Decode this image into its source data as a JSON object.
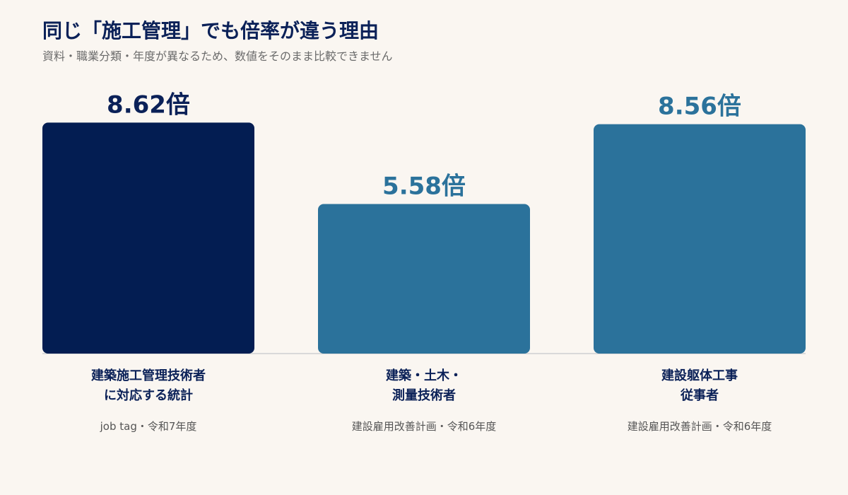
{
  "title": "同じ「施工管理」でも倍率が違う理由",
  "subtitle": "資料・職業分類・年度が異なるため、数値をそのまま比較できません",
  "chart_data": {
    "type": "bar",
    "value_suffix": "倍",
    "ylim": [
      0,
      9.5
    ],
    "grid": false,
    "categories": [
      {
        "label_lines": [
          "建築施工管理技術者",
          "に対応する統計"
        ],
        "source": "job tag・令和7年度",
        "value": 8.62,
        "value_label": "8.62倍",
        "color": "#031d52",
        "label_color": "#0b2158"
      },
      {
        "label_lines": [
          "建築・土木・",
          "測量技術者"
        ],
        "source": "建設雇用改善計画・令和6年度",
        "value": 5.58,
        "value_label": "5.58倍",
        "color": "#2b729b",
        "label_color": "#2b729b"
      },
      {
        "label_lines": [
          "建設躯体工事",
          "従事者"
        ],
        "source": "建設雇用改善計画・令和6年度",
        "value": 8.56,
        "value_label": "8.56倍",
        "color": "#2b729b",
        "label_color": "#2b729b"
      }
    ]
  }
}
